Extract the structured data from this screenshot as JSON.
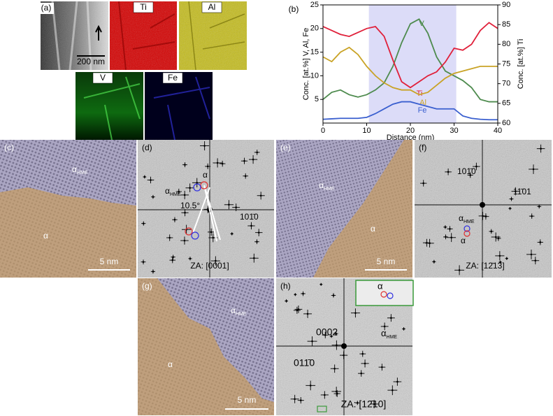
{
  "panels": {
    "a": {
      "label": "(a)",
      "maps": [
        "Ti",
        "Al",
        "V",
        "Fe"
      ],
      "scale_bar": "200 nm"
    },
    "b": {
      "label": "(b)"
    },
    "c": {
      "label": "(c)",
      "hme": "α",
      "hme_sub": "HME",
      "phase": "α",
      "scale_bar": "5 nm"
    },
    "d": {
      "label": "(d)",
      "alpha": "α",
      "hme": "α",
      "hme_sub": "HME",
      "angle": "10.5°",
      "reflection": "101̄0",
      "zone_axis": "ZA: [0001]"
    },
    "e": {
      "label": "(e)",
      "hme": "α",
      "hme_sub": "HME",
      "phase": "α",
      "scale_bar": "5 nm"
    },
    "f": {
      "label": "(f)",
      "reflection_1": "101̄0",
      "reflection_2": "11̄01",
      "hme": "α",
      "hme_sub": "HME",
      "alpha": "α",
      "zone_axis": "ZA: [12̄13]"
    },
    "g": {
      "label": "(g)",
      "hme": "α",
      "hme_sub": "HME",
      "phase": "α",
      "scale_bar": "5 nm"
    },
    "h": {
      "label": "(h)",
      "reflection_1": "0002",
      "hme": "α",
      "hme_sub": "HME",
      "reflection_2": "011̄0",
      "inset_alpha": "α",
      "zone_axis": "ZA: [12̄10]"
    }
  },
  "chart_data": {
    "type": "line",
    "xlabel": "Distance (nm)",
    "ylabel": "Conc. [at.%] V, Al, Fe",
    "y2label": "Conc. [at.%] Ti",
    "x": [
      0,
      2,
      4,
      6,
      8,
      10,
      12,
      14,
      16,
      18,
      20,
      22,
      24,
      26,
      28,
      30,
      32,
      34,
      36,
      38,
      40
    ],
    "series": [
      {
        "name": "V",
        "color": "#4e8b4e",
        "values": [
          5,
          6.5,
          7,
          6,
          5.5,
          6,
          7,
          8.5,
          12,
          17,
          21,
          22,
          19,
          14,
          11,
          10,
          9,
          7.5,
          5,
          4.5,
          4.5
        ]
      },
      {
        "name": "Ti",
        "color": "#e0203a",
        "axis": "y2",
        "values": [
          84.5,
          83.5,
          82.5,
          82,
          83,
          84,
          84.5,
          82,
          76,
          70.5,
          69,
          70.5,
          72,
          73,
          75.5,
          79,
          78.5,
          80,
          83.5,
          85.5,
          84
        ]
      },
      {
        "name": "Al",
        "color": "#c9a326",
        "values": [
          14,
          13,
          15,
          16,
          14.5,
          12,
          10,
          8.5,
          7.5,
          7,
          7,
          6,
          6.5,
          8,
          9.5,
          10.5,
          11,
          11.5,
          12,
          12,
          12
        ]
      },
      {
        "name": "Fe",
        "color": "#3a5fcf",
        "values": [
          0.8,
          0.9,
          1,
          1,
          1,
          1.2,
          2,
          3,
          4,
          4.5,
          4.5,
          4,
          3.5,
          3,
          3,
          3,
          1.5,
          1,
          0.8,
          0.7,
          0.7
        ]
      }
    ],
    "xlim": [
      0,
      40
    ],
    "ylim": [
      0,
      25
    ],
    "y2lim": [
      60,
      90
    ],
    "xticks": [
      0,
      10,
      20,
      30,
      40
    ],
    "yticks": [
      5,
      10,
      15,
      20,
      25
    ],
    "y2ticks": [
      60,
      65,
      70,
      75,
      80,
      85,
      90
    ],
    "shaded_xrange": [
      10.5,
      30.5
    ],
    "shade_color": "#dcdcf8"
  }
}
